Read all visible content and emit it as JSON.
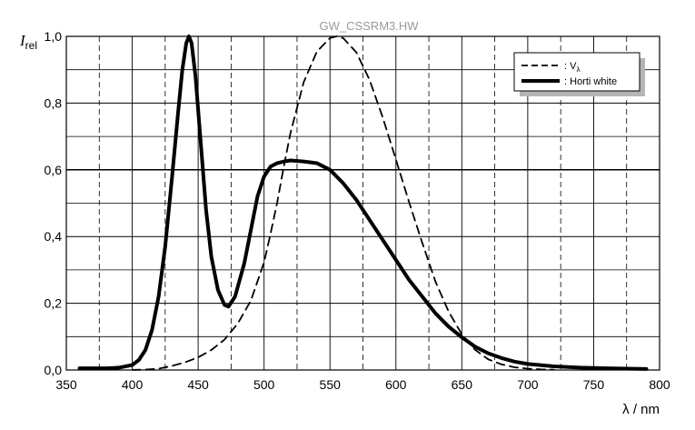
{
  "chart_data": {
    "type": "line",
    "watermark": "GW_CSSRM3.HW",
    "ylabel": "I",
    "ylabel_sub": "rel",
    "xlabel": "λ / nm",
    "xlim": [
      350,
      800
    ],
    "ylim": [
      0,
      1
    ],
    "x_ticks": [
      350,
      400,
      450,
      500,
      550,
      600,
      650,
      700,
      750,
      800
    ],
    "x_tick_labels": [
      "350",
      "400",
      "450",
      "500",
      "550",
      "600",
      "650",
      "700",
      "750",
      "800"
    ],
    "x_dashed_grid": [
      375,
      425,
      475,
      525,
      575,
      625,
      675,
      725,
      775
    ],
    "y_ticks": [
      0,
      0.2,
      0.4,
      0.6,
      0.8,
      1.0
    ],
    "y_tick_labels": [
      "0,0",
      "0,2",
      "0,4",
      "0,6",
      "0,8",
      "1,0"
    ],
    "y_minor_grid": [
      0.1,
      0.3,
      0.5,
      0.7,
      0.9
    ],
    "grid": true,
    "legend_position": "top-right",
    "series": [
      {
        "name": "V",
        "name_sub": "λ",
        "style": "dashed",
        "color": "#000000",
        "x": [
          400,
          410,
          420,
          430,
          440,
          450,
          460,
          470,
          480,
          490,
          500,
          505,
          510,
          515,
          520,
          530,
          540,
          550,
          555,
          560,
          570,
          580,
          590,
          600,
          610,
          620,
          630,
          640,
          650,
          660,
          670,
          680,
          690,
          700,
          710,
          720
        ],
        "y": [
          0.0004,
          0.0012,
          0.004,
          0.012,
          0.023,
          0.038,
          0.06,
          0.091,
          0.139,
          0.208,
          0.323,
          0.41,
          0.503,
          0.61,
          0.71,
          0.862,
          0.954,
          0.995,
          1.0,
          0.995,
          0.952,
          0.87,
          0.757,
          0.631,
          0.503,
          0.381,
          0.265,
          0.175,
          0.107,
          0.061,
          0.032,
          0.017,
          0.0082,
          0.0041,
          0.0021,
          0.001
        ]
      },
      {
        "name": "Horti white",
        "style": "solid",
        "color": "#000000",
        "x": [
          360,
          380,
          390,
          400,
          405,
          410,
          415,
          420,
          425,
          430,
          435,
          438,
          441,
          443,
          445,
          448,
          452,
          456,
          460,
          465,
          470,
          473,
          478,
          485,
          490,
          495,
          500,
          505,
          510,
          515,
          520,
          530,
          540,
          550,
          560,
          570,
          580,
          590,
          600,
          610,
          620,
          630,
          640,
          650,
          660,
          670,
          680,
          690,
          700,
          720,
          740,
          760,
          790
        ],
        "y": [
          0.005,
          0.005,
          0.007,
          0.015,
          0.03,
          0.06,
          0.12,
          0.22,
          0.37,
          0.57,
          0.78,
          0.9,
          0.98,
          1.0,
          0.98,
          0.88,
          0.68,
          0.48,
          0.34,
          0.24,
          0.195,
          0.19,
          0.22,
          0.32,
          0.42,
          0.52,
          0.58,
          0.61,
          0.62,
          0.625,
          0.628,
          0.625,
          0.62,
          0.6,
          0.56,
          0.51,
          0.45,
          0.39,
          0.33,
          0.27,
          0.22,
          0.17,
          0.13,
          0.098,
          0.07,
          0.05,
          0.036,
          0.025,
          0.018,
          0.011,
          0.007,
          0.005,
          0.003
        ]
      }
    ]
  }
}
